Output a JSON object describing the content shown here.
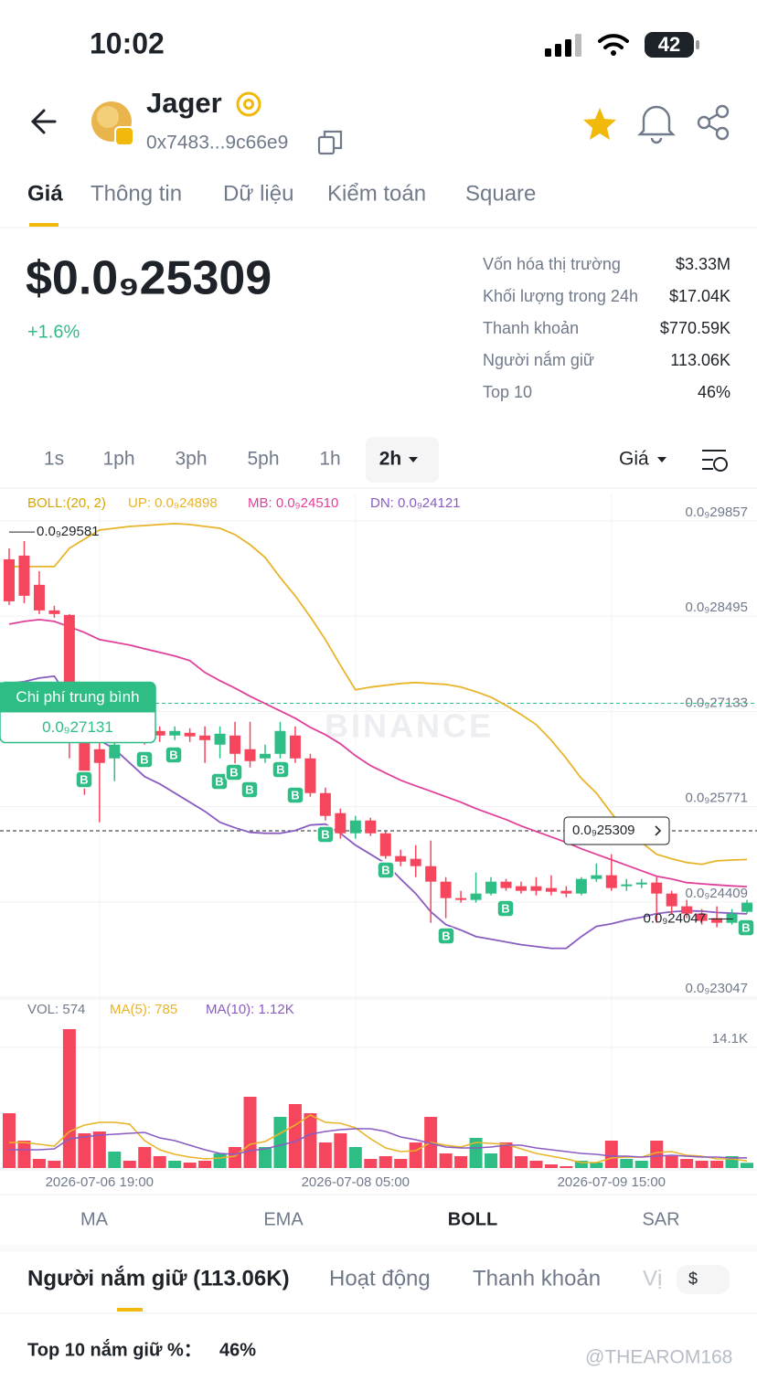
{
  "status_bar": {
    "time": "10:02",
    "battery": "42"
  },
  "token": {
    "name": "Jager",
    "address": "0x7483...9c66e9"
  },
  "tabs": [
    "Giá",
    "Thông tin",
    "Dữ liệu",
    "Kiểm toán",
    "Square"
  ],
  "price": {
    "value": "$0.0₉25309",
    "change": "+1.6%"
  },
  "stats": [
    [
      "Vốn hóa thị trường",
      "$3.33M"
    ],
    [
      "Khối lượng trong 24h",
      "$17.04K"
    ],
    [
      "Thanh khoản",
      "$770.59K"
    ],
    [
      "Người nắm giữ",
      "113.06K"
    ],
    [
      "Top 10",
      "46%"
    ]
  ],
  "intervals": [
    "1s",
    "1ph",
    "3ph",
    "5ph",
    "1h",
    "2h"
  ],
  "chart_menu": "Giá",
  "chart_data": {
    "type": "candlestick",
    "categories": [
      null,
      null,
      null,
      null,
      null,
      null,
      "2026-07-06 19:00",
      null,
      null,
      null,
      null,
      null,
      null,
      null,
      null,
      null,
      null,
      null,
      null,
      null,
      null,
      null,
      null,
      "2026-07-08 05:00",
      null,
      null,
      null,
      null,
      null,
      null,
      null,
      null,
      null,
      null,
      null,
      null,
      null,
      null,
      null,
      null,
      "2026-07-09 15:00",
      null,
      null,
      null,
      null,
      null,
      null,
      null,
      null,
      null
    ],
    "open": [
      2.9191e-11,
      2.9244e-11,
      2.8826e-11,
      2.846e-11,
      2.8395e-11,
      2.6736e-11,
      2.6475e-11,
      2.6344e-11,
      2.6867e-11,
      2.6736e-11,
      2.6736e-11,
      2.6671e-11,
      2.671e-11,
      2.6671e-11,
      2.654e-11,
      2.6671e-11,
      2.6475e-11,
      2.6344e-11,
      2.6409e-11,
      2.6671e-11,
      2.6344e-11,
      2.5848e-11,
      2.5561e-11,
      2.5273e-11,
      2.5456e-11,
      2.5273e-11,
      2.4947e-11,
      2.4908e-11,
      2.4803e-11,
      2.4581e-11,
      2.4346e-11,
      2.432e-11,
      2.4411e-11,
      2.4581e-11,
      2.4516e-11,
      2.4516e-11,
      2.449e-11,
      2.445e-11,
      2.4411e-11,
      2.462e-11,
      2.4673e-11,
      2.4516e-11,
      2.4542e-11,
      2.4568e-11,
      2.4411e-11,
      2.4229e-11,
      2.4124e-11,
      2.4059e-11,
      2.3993e-11,
      2.415e-11
    ],
    "high": [
      2.9348e-11,
      2.9452e-11,
      2.9021e-11,
      2.8525e-11,
      2.8408e-11,
      2.6867e-11,
      2.6867e-11,
      2.6867e-11,
      2.6932e-11,
      2.6801e-11,
      2.6801e-11,
      2.6801e-11,
      2.6775e-11,
      2.6801e-11,
      2.6801e-11,
      2.6867e-11,
      2.6867e-11,
      2.654e-11,
      2.6867e-11,
      2.6801e-11,
      2.6409e-11,
      2.5926e-11,
      2.5626e-11,
      2.5521e-11,
      2.5495e-11,
      2.5299e-11,
      2.5038e-11,
      2.5103e-11,
      2.5169e-11,
      2.4646e-11,
      2.445e-11,
      2.4712e-11,
      2.4646e-11,
      2.462e-11,
      2.4581e-11,
      2.4646e-11,
      2.4673e-11,
      2.4516e-11,
      2.4646e-11,
      2.4842e-11,
      2.4973e-11,
      2.462e-11,
      2.462e-11,
      2.4646e-11,
      2.445e-11,
      2.432e-11,
      2.4189e-11,
      2.4229e-11,
      2.4189e-11,
      2.432e-11
    ],
    "low": [
      2.8538e-11,
      2.8564e-11,
      2.8408e-11,
      2.8355e-11,
      2.6344e-11,
      2.5822e-11,
      2.543e-11,
      2.6018e-11,
      2.6605e-11,
      2.654e-11,
      2.6579e-11,
      2.6605e-11,
      2.6579e-11,
      2.6279e-11,
      2.6344e-11,
      2.6214e-11,
      2.6214e-11,
      2.6279e-11,
      2.6344e-11,
      2.6279e-11,
      2.5796e-11,
      2.5456e-11,
      2.5195e-11,
      2.5195e-11,
      2.5234e-11,
      2.4908e-11,
      2.4803e-11,
      2.4646e-11,
      2.3993e-11,
      2.4059e-11,
      2.4281e-11,
      2.4281e-11,
      2.4385e-11,
      2.445e-11,
      2.4411e-11,
      2.4385e-11,
      2.4385e-11,
      2.4359e-11,
      2.4385e-11,
      2.4581e-11,
      2.445e-11,
      2.445e-11,
      2.449e-11,
      2.3993e-11,
      2.4124e-11,
      2.4059e-11,
      2.3967e-11,
      2.3928e-11,
      2.3967e-11,
      2.4124e-11
    ],
    "close": [
      2.859e-11,
      2.8669e-11,
      2.846e-11,
      2.8408e-11,
      2.6736e-11,
      2.6148e-11,
      2.6279e-11,
      2.654e-11,
      2.6736e-11,
      2.6632e-11,
      2.6671e-11,
      2.6736e-11,
      2.6658e-11,
      2.6605e-11,
      2.6697e-11,
      2.6409e-11,
      2.6305e-11,
      2.6409e-11,
      2.6736e-11,
      2.6344e-11,
      2.5848e-11,
      2.5521e-11,
      2.5273e-11,
      2.5456e-11,
      2.5273e-11,
      2.4947e-11,
      2.4868e-11,
      2.4803e-11,
      2.4581e-11,
      2.4346e-11,
      2.432e-11,
      2.4411e-11,
      2.4581e-11,
      2.449e-11,
      2.445e-11,
      2.445e-11,
      2.4437e-11,
      2.4411e-11,
      2.462e-11,
      2.4673e-11,
      2.449e-11,
      2.4542e-11,
      2.4568e-11,
      2.4411e-11,
      2.4229e-11,
      2.4124e-11,
      2.402e-11,
      2.3993e-11,
      2.4124e-11,
      2.4281e-11
    ],
    "up_color": "#2ebd85",
    "down_color": "#f6465d",
    "boll_label": "BOLL:(20, 2)",
    "series": [
      {
        "name": "UP: 0.0₉24898",
        "color": "#e8b42a",
        "values": [
          2.9087e-11,
          2.9087e-11,
          2.9087e-11,
          2.9087e-11,
          2.9348e-11,
          2.9479e-11,
          2.9609e-11,
          2.9635e-11,
          2.9661e-11,
          2.9674e-11,
          2.9688e-11,
          2.9701e-11,
          2.9688e-11,
          2.9661e-11,
          2.9635e-11,
          2.9544e-11,
          2.94e-11,
          2.9217e-11,
          2.893e-11,
          2.8669e-11,
          2.8368e-11,
          2.8042e-11,
          2.7676e-11,
          2.7324e-11,
          2.7363e-11,
          2.7389e-11,
          2.7415e-11,
          2.7428e-11,
          2.7415e-11,
          2.7402e-11,
          2.7363e-11,
          2.7298e-11,
          2.7219e-11,
          2.7102e-11,
          2.6971e-11,
          2.6827e-11,
          2.6605e-11,
          2.6344e-11,
          2.6057e-11,
          2.5848e-11,
          2.5561e-11,
          2.5299e-11,
          2.5143e-11,
          2.4973e-11,
          2.4908e-11,
          2.4855e-11,
          2.4829e-11,
          2.488e-11,
          2.489e-11,
          2.4898e-11
        ]
      },
      {
        "name": "MB: 0.0₉24510",
        "color": "#e0409a",
        "values": [
          2.8264e-11,
          2.8303e-11,
          2.8329e-11,
          2.8303e-11,
          2.8225e-11,
          2.8146e-11,
          2.8042e-11,
          2.8003e-11,
          2.7964e-11,
          2.7911e-11,
          2.7859e-11,
          2.7807e-11,
          2.7742e-11,
          2.7572e-11,
          2.7454e-11,
          2.735e-11,
          2.7232e-11,
          2.7128e-11,
          2.7023e-11,
          2.6919e-11,
          2.6788e-11,
          2.6684e-11,
          2.6553e-11,
          2.6383e-11,
          2.624e-11,
          2.6135e-11,
          2.6031e-11,
          2.5952e-11,
          2.5874e-11,
          2.5796e-11,
          2.5717e-11,
          2.5626e-11,
          2.5548e-11,
          2.5469e-11,
          2.5378e-11,
          2.5299e-11,
          2.5221e-11,
          2.5143e-11,
          2.5051e-11,
          2.4973e-11,
          2.4895e-11,
          2.4816e-11,
          2.4738e-11,
          2.4659e-11,
          2.462e-11,
          2.4568e-11,
          2.455e-11,
          2.4535e-11,
          2.452e-11,
          2.451e-11
        ]
      },
      {
        "name": "DN: 0.0₉24121",
        "color": "#8a5cc2",
        "values": [
          2.7415e-11,
          2.7441e-11,
          2.7493e-11,
          2.752e-11,
          2.7193e-11,
          2.6867e-11,
          2.6605e-11,
          2.6475e-11,
          2.6279e-11,
          2.6083e-11,
          2.5979e-11,
          2.5848e-11,
          2.5717e-11,
          2.5587e-11,
          2.543e-11,
          2.5352e-11,
          2.5286e-11,
          2.5273e-11,
          2.5273e-11,
          2.5312e-11,
          2.5391e-11,
          2.5404e-11,
          2.5273e-11,
          2.5103e-11,
          2.4973e-11,
          2.4842e-11,
          2.462e-11,
          2.4411e-11,
          2.415e-11,
          2.3967e-11,
          2.3889e-11,
          2.3797e-11,
          2.3758e-11,
          2.3719e-11,
          2.368e-11,
          2.3654e-11,
          2.3628e-11,
          2.3628e-11,
          2.3797e-11,
          2.3941e-11,
          2.398e-11,
          2.4033e-11,
          2.4072e-11,
          2.4124e-11,
          2.415e-11,
          2.4163e-11,
          2.416e-11,
          2.414e-11,
          2.413e-11,
          2.4121e-11
        ]
      }
    ],
    "ylim": [
      2.2943e-11,
      3.0131e-11
    ],
    "yticks": [
      {
        "value": 2.9857e-11,
        "label": "0.0₉29857"
      },
      {
        "value": 2.8495e-11,
        "label": "0.0₉28495"
      },
      {
        "value": 2.7133e-11,
        "label": "0.0₉27133"
      },
      {
        "value": 2.5771e-11,
        "label": "0.0₉25771"
      },
      {
        "value": 2.4409e-11,
        "label": "0.0₉24409"
      },
      {
        "value": 2.3047e-11,
        "label": "0.0₉23047"
      }
    ],
    "grid": true,
    "high_marker": {
      "value": 2.9581e-11,
      "label": "0.0₉29581"
    },
    "low_marker": {
      "value": 2.4047e-11,
      "label": "0.0₉24047"
    },
    "current_price": {
      "value": 2.5309e-11,
      "label": "0.0₉25309"
    },
    "average_cost": {
      "label": "Chi phí trung bình",
      "value": 2.7131e-11,
      "value_label": "0.0₉27131"
    },
    "watermark": "BINANCE",
    "buy_label": "B",
    "volume": {
      "label": "VOL: 574",
      "values": [
        6000,
        3000,
        1000,
        800,
        15200,
        3800,
        4000,
        1800,
        800,
        2300,
        1300,
        800,
        600,
        800,
        1600,
        2300,
        7800,
        2300,
        5600,
        7000,
        6000,
        2800,
        3800,
        2300,
        1000,
        1300,
        1000,
        2800,
        5600,
        1600,
        1300,
        3300,
        1600,
        2800,
        1300,
        800,
        400,
        200,
        800,
        600,
        3000,
        1000,
        800,
        3000,
        1300,
        1000,
        800,
        800,
        1300,
        574
      ],
      "ylim": [
        0,
        15200
      ],
      "yticks": [
        {
          "value": 14100,
          "label": "14.1K"
        }
      ],
      "series": [
        {
          "name": "MA(5): 785",
          "color": "#e8b42a",
          "values": [
            2800,
            2800,
            2600,
            2400,
            4000,
            4700,
            5000,
            5000,
            4800,
            3000,
            2000,
            1500,
            1200,
            1000,
            1100,
            1300,
            2600,
            2900,
            3800,
            4700,
            5800,
            5000,
            4900,
            4400,
            3200,
            2200,
            1800,
            1900,
            2800,
            2500,
            2300,
            2800,
            2700,
            2600,
            2100,
            1600,
            1300,
            1000,
            600,
            600,
            1100,
            1200,
            1200,
            1700,
            1800,
            1400,
            1300,
            1000,
            1000,
            785
          ]
        },
        {
          "name": "MA(10): 1.12K",
          "color": "#8a5cc2",
          "values": [
            2000,
            2000,
            2000,
            2100,
            3200,
            3400,
            3600,
            3700,
            3800,
            3900,
            3300,
            3000,
            2500,
            2000,
            1600,
            1500,
            1900,
            2100,
            2500,
            2900,
            3700,
            4000,
            4200,
            4300,
            4300,
            4000,
            3400,
            3100,
            2700,
            2300,
            2200,
            2200,
            2300,
            2500,
            2500,
            2200,
            2000,
            1800,
            1600,
            1500,
            1300,
            1300,
            1200,
            1300,
            1400,
            1300,
            1200,
            1200,
            1100,
            1120
          ]
        }
      ]
    }
  },
  "indicator_tabs": [
    "MA",
    "EMA",
    "BOLL",
    "SAR"
  ],
  "holder_tabs": [
    "Người nắm giữ (113.06K)",
    "Hoạt động",
    "Thanh khoản",
    "Vị"
  ],
  "currency": "$",
  "top10": {
    "label": "Top 10 nắm giữ %：",
    "value": "46%"
  },
  "watermark": "@THEAROM168"
}
